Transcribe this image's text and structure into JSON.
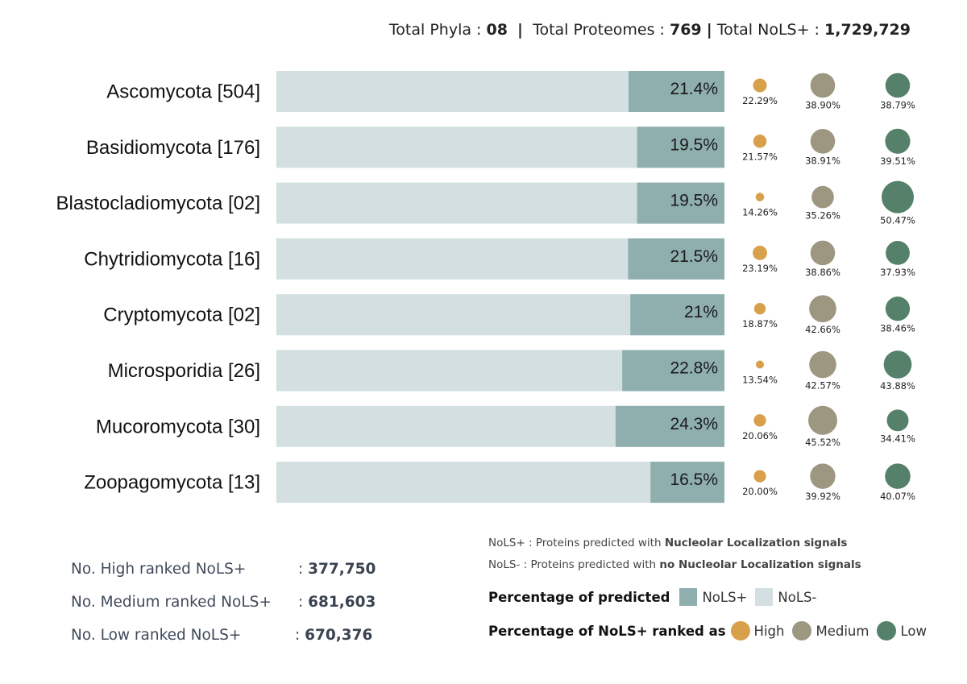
{
  "totals": {
    "phyla_label": "Total Phyla :",
    "phyla_value": "08",
    "sep1": "|",
    "proteomes_label": "Total Proteomes :",
    "proteomes_value": "769",
    "sep2": "|",
    "nols_label": "Total NoLS+ :",
    "nols_value": "1,729,729"
  },
  "chart_data": {
    "type": "bar",
    "orientation": "horizontal",
    "stacked": true,
    "categories": [
      "Ascomycota [504]",
      "Basidiomycota [176]",
      "Blastocladiomycota [02]",
      "Chytridiomycota [16]",
      "Cryptomycota [02]",
      "Microsporidia [26]",
      "Mucoromycota [30]",
      "Zoopagomycota [13]"
    ],
    "series": [
      {
        "name": "NoLS+",
        "values": [
          21.4,
          19.5,
          19.5,
          21.5,
          21,
          22.8,
          24.3,
          16.5
        ],
        "labels": [
          "21.4%",
          "19.5%",
          "19.5%",
          "21.5%",
          "21%",
          "22.8%",
          "24.3%",
          "16.5%"
        ],
        "color": "#8faeae"
      },
      {
        "name": "NoLS-",
        "values": [
          78.6,
          80.5,
          80.5,
          78.5,
          79,
          77.2,
          75.7,
          83.5
        ],
        "color": "#d3dfe0"
      }
    ],
    "xlim": [
      0,
      100
    ],
    "ranked": {
      "series": [
        {
          "name": "High",
          "color": "#d8a04b",
          "values": [
            22.29,
            21.57,
            14.26,
            23.19,
            18.87,
            13.54,
            20.06,
            20.0
          ],
          "labels": [
            "22.29%",
            "21.57%",
            "14.26%",
            "23.19%",
            "18.87%",
            "13.54%",
            "20.06%",
            "20.00%"
          ]
        },
        {
          "name": "Medium",
          "color": "#9d9782",
          "values": [
            38.9,
            38.91,
            35.26,
            38.86,
            42.66,
            42.57,
            45.52,
            39.92
          ],
          "labels": [
            "38.90%",
            "38.91%",
            "35.26%",
            "38.86%",
            "42.66%",
            "42.57%",
            "45.52%",
            "39.92%"
          ]
        },
        {
          "name": "Low",
          "color": "#55806a",
          "values": [
            38.79,
            39.51,
            50.47,
            37.93,
            38.46,
            43.88,
            34.41,
            40.07
          ],
          "labels": [
            "38.79%",
            "39.51%",
            "50.47%",
            "37.93%",
            "38.46%",
            "43.88%",
            "34.41%",
            "40.07%"
          ]
        }
      ]
    }
  },
  "counts": {
    "high_label": "No. High ranked NoLS+",
    "high_value": "377,750",
    "medium_label": "No. Medium ranked NoLS+",
    "medium_value": "681,603",
    "low_label": "No. Low ranked NoLS+",
    "low_value": "670,376",
    "colon": ":"
  },
  "legend": {
    "def1_prefix": "NoLS+ : Proteins predicted with ",
    "def1_bold": "Nucleolar Localization signals",
    "def2_prefix": "NoLS- : Proteins predicted with ",
    "def2_bold": "no Nucleolar Localization signals",
    "predicted_title": "Percentage of predicted",
    "nols_pos": "NoLS+",
    "nols_neg": "NoLS-",
    "ranked_title": "Percentage of NoLS+ ranked as",
    "high": "High",
    "medium": "Medium",
    "low": "Low"
  }
}
